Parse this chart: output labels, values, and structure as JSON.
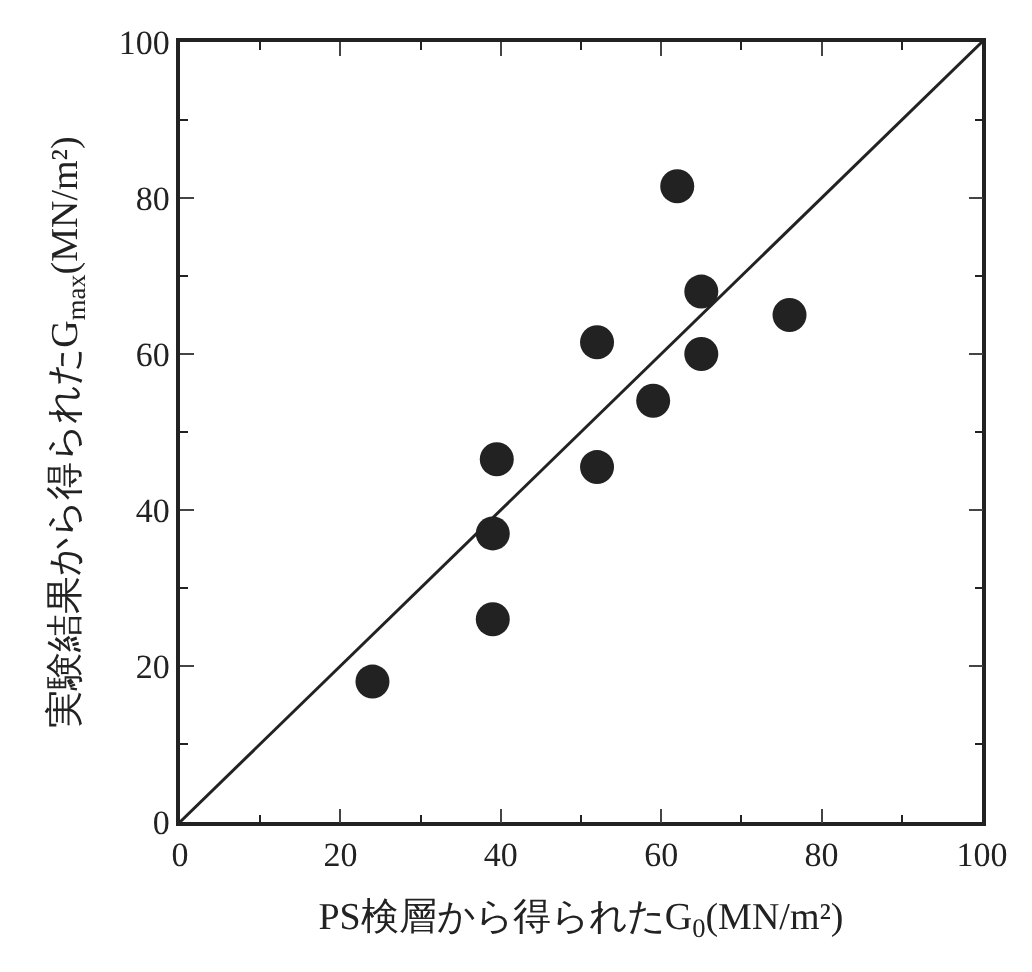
{
  "chart_data": {
    "type": "scatter",
    "xlabel": "PS検層から得られたG$_{0}$(MN/m²)",
    "ylabel": "実験結果から得られたG$_{max}$(MN/m²)",
    "xlim": [
      0,
      100
    ],
    "ylim": [
      0,
      100
    ],
    "xticks": [
      0,
      20,
      40,
      60,
      80,
      100
    ],
    "yticks": [
      0,
      20,
      40,
      60,
      80,
      100
    ],
    "marker": "circle",
    "series": [
      {
        "color": "#222222",
        "x": [
          24,
          39,
          39,
          39.5,
          52,
          52,
          59,
          62,
          65,
          65,
          76
        ],
        "values": [
          18,
          26,
          37,
          46.5,
          45.5,
          61.5,
          54,
          81.5,
          68,
          60,
          65
        ]
      },
      {
        "type": "line",
        "color": "#222222",
        "marker": "none",
        "x": [
          0,
          100
        ],
        "values": [
          0,
          100
        ]
      }
    ]
  }
}
